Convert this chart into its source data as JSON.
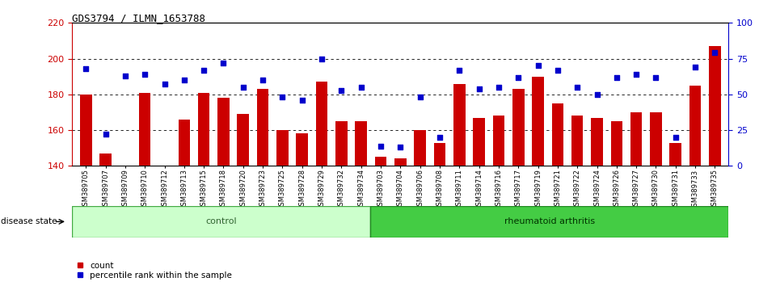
{
  "title": "GDS3794 / ILMN_1653788",
  "samples": [
    "GSM389705",
    "GSM389707",
    "GSM389709",
    "GSM389710",
    "GSM389712",
    "GSM389713",
    "GSM389715",
    "GSM389718",
    "GSM389720",
    "GSM389723",
    "GSM389725",
    "GSM389728",
    "GSM389729",
    "GSM389732",
    "GSM389734",
    "GSM389703",
    "GSM389704",
    "GSM389706",
    "GSM389708",
    "GSM389711",
    "GSM389714",
    "GSM389716",
    "GSM389717",
    "GSM389719",
    "GSM389721",
    "GSM389722",
    "GSM389724",
    "GSM389726",
    "GSM389727",
    "GSM389730",
    "GSM389731",
    "GSM389733",
    "GSM389735"
  ],
  "counts": [
    180,
    147,
    140,
    181,
    140,
    166,
    181,
    178,
    169,
    183,
    160,
    158,
    187,
    165,
    165,
    145,
    144,
    160,
    153,
    186,
    167,
    168,
    183,
    190,
    175,
    168,
    167,
    165,
    170,
    170,
    153,
    185,
    207
  ],
  "percentile": [
    68,
    22,
    63,
    64,
    57,
    60,
    67,
    72,
    55,
    60,
    48,
    46,
    75,
    53,
    55,
    14,
    13,
    48,
    20,
    67,
    54,
    55,
    62,
    70,
    67,
    55,
    50,
    62,
    64,
    62,
    20,
    69,
    79
  ],
  "control_count": 15,
  "ylim_left": [
    140,
    220
  ],
  "ylim_right": [
    0,
    100
  ],
  "yticks_left": [
    140,
    160,
    180,
    200,
    220
  ],
  "yticks_right": [
    0,
    25,
    50,
    75,
    100
  ],
  "bar_color": "#cc0000",
  "dot_color": "#0000cc",
  "control_bg": "#ccffcc",
  "ra_bg": "#44cc44",
  "left_axis_color": "#cc0000",
  "right_axis_color": "#0000cc",
  "grid_color": "#000000",
  "bar_width": 0.6
}
